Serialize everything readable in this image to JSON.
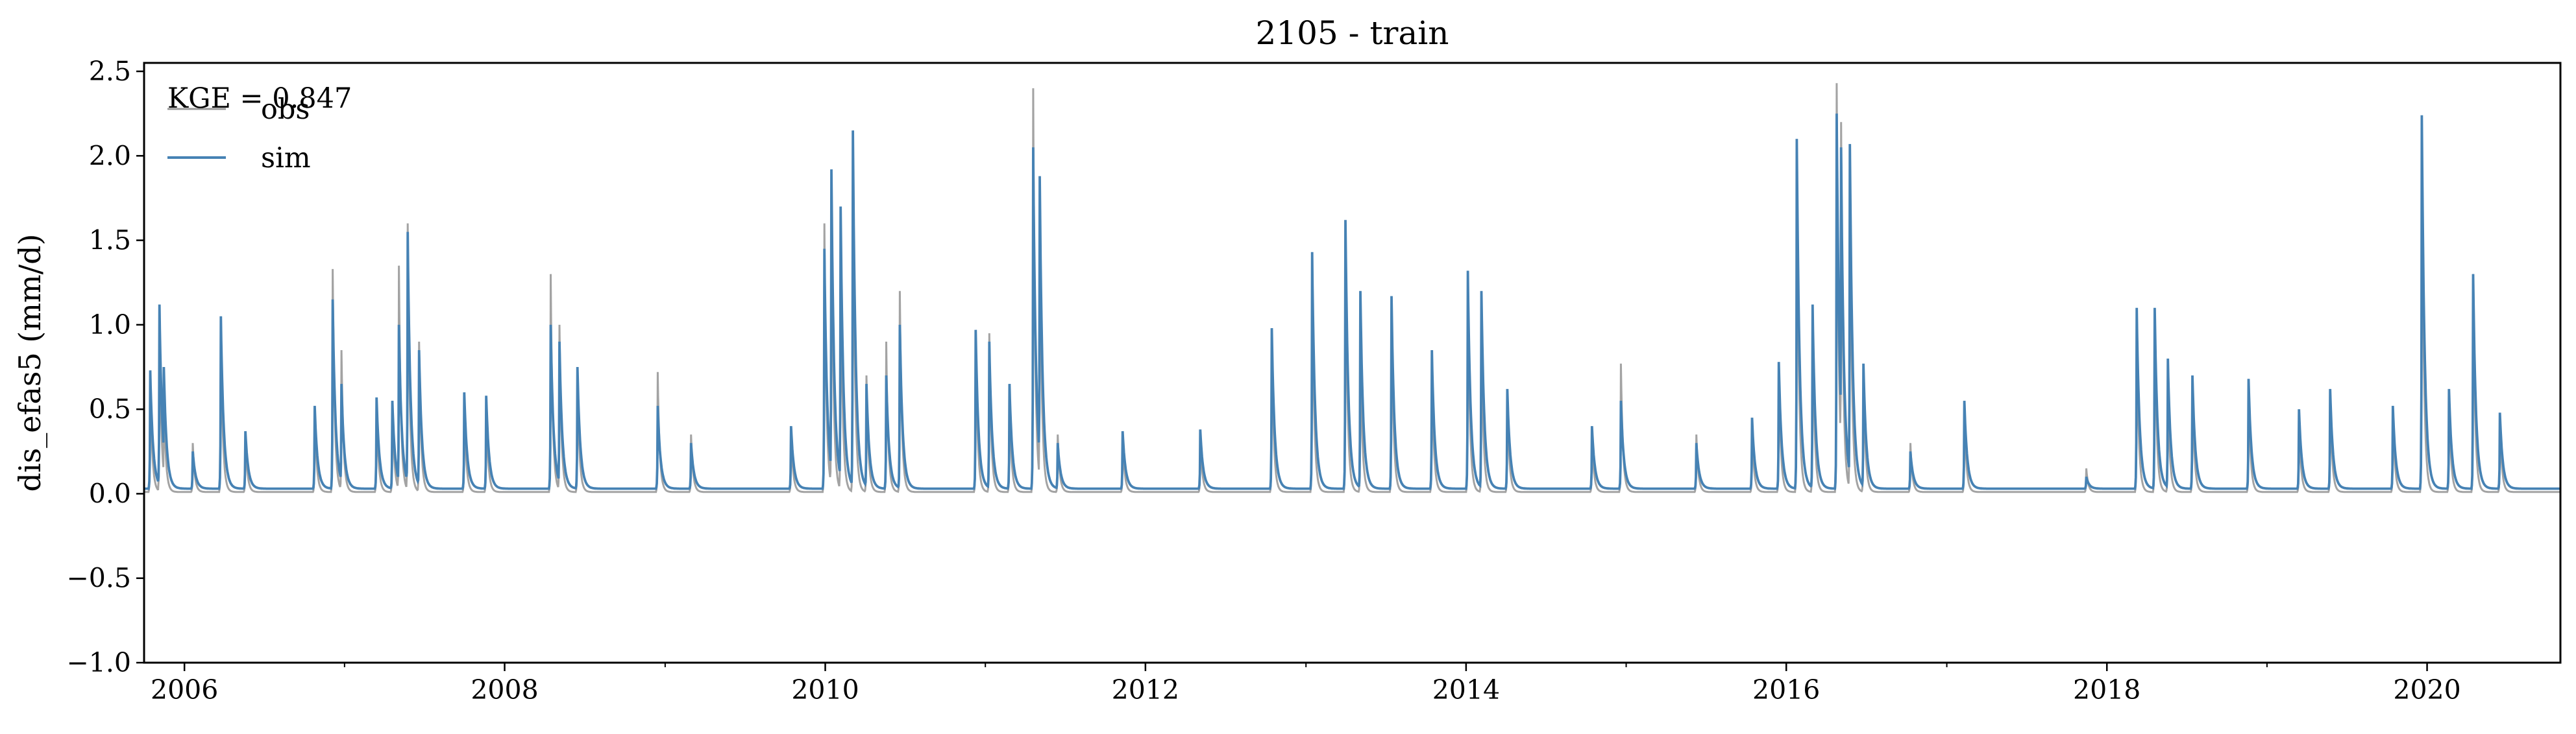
{
  "chart_data": {
    "type": "line",
    "title": "2105 - train",
    "xlabel": "",
    "ylabel": "dis_efas5 (mm/d)",
    "xlim": [
      "2005-10-01",
      "2020-10-31"
    ],
    "ylim": [
      -1.0,
      2.55
    ],
    "grid": false,
    "legend_position": "top-left",
    "annotation": "KGE = 0.847",
    "x_tick_labels": [
      "2006",
      "2008",
      "2010",
      "2012",
      "2014",
      "2016",
      "2018",
      "2020"
    ],
    "y_tick_labels": [
      "−1.0",
      "−0.5",
      "0.0",
      "0.5",
      "1.0",
      "1.5",
      "2.0",
      "2.5"
    ],
    "baseflow": {
      "obs": 0.01,
      "sim": 0.03
    },
    "series": [
      {
        "name": "obs",
        "color": "#999999",
        "peaks": [
          [
            "2005-10-15",
            0.7
          ],
          [
            "2005-11-05",
            1.05
          ],
          [
            "2005-11-15",
            0.6
          ],
          [
            "2006-01-20",
            0.3
          ],
          [
            "2006-03-25",
            1.0
          ],
          [
            "2006-05-20",
            0.35
          ],
          [
            "2006-10-25",
            0.5
          ],
          [
            "2006-12-05",
            1.33
          ],
          [
            "2006-12-25",
            0.85
          ],
          [
            "2007-03-15",
            0.55
          ],
          [
            "2007-04-20",
            0.55
          ],
          [
            "2007-05-05",
            1.35
          ],
          [
            "2007-05-25",
            1.6
          ],
          [
            "2007-06-20",
            0.9
          ],
          [
            "2007-10-01",
            0.55
          ],
          [
            "2007-11-20",
            0.55
          ],
          [
            "2008-04-15",
            1.3
          ],
          [
            "2008-05-05",
            1.0
          ],
          [
            "2008-06-15",
            0.72
          ],
          [
            "2008-12-15",
            0.72
          ],
          [
            "2009-03-01",
            0.35
          ],
          [
            "2009-10-15",
            0.38
          ],
          [
            "2009-12-30",
            1.6
          ],
          [
            "2010-01-15",
            1.9
          ],
          [
            "2010-02-05",
            1.5
          ],
          [
            "2010-03-05",
            2.1
          ],
          [
            "2010-04-05",
            0.7
          ],
          [
            "2010-05-20",
            0.9
          ],
          [
            "2010-06-20",
            1.2
          ],
          [
            "2010-12-10",
            0.95
          ],
          [
            "2011-01-10",
            0.95
          ],
          [
            "2011-02-25",
            0.6
          ],
          [
            "2011-04-20",
            2.4
          ],
          [
            "2011-05-05",
            1.8
          ],
          [
            "2011-06-15",
            0.35
          ],
          [
            "2011-11-10",
            0.35
          ],
          [
            "2012-05-05",
            0.35
          ],
          [
            "2012-10-15",
            0.95
          ],
          [
            "2013-01-15",
            1.4
          ],
          [
            "2013-04-01",
            1.6
          ],
          [
            "2013-05-05",
            0.9
          ],
          [
            "2013-07-15",
            1.15
          ],
          [
            "2013-10-15",
            0.8
          ],
          [
            "2014-01-05",
            1.3
          ],
          [
            "2014-02-05",
            1.0
          ],
          [
            "2014-04-05",
            0.6
          ],
          [
            "2014-10-15",
            0.35
          ],
          [
            "2014-12-20",
            0.77
          ],
          [
            "2015-06-10",
            0.35
          ],
          [
            "2015-10-15",
            0.4
          ],
          [
            "2015-12-15",
            0.77
          ],
          [
            "2016-01-25",
            2.1
          ],
          [
            "2016-03-01",
            1.1
          ],
          [
            "2016-04-25",
            2.43
          ],
          [
            "2016-05-05",
            2.2
          ],
          [
            "2016-05-25",
            2.05
          ],
          [
            "2016-06-25",
            0.75
          ],
          [
            "2016-10-10",
            0.3
          ],
          [
            "2017-02-10",
            0.52
          ],
          [
            "2017-11-15",
            0.15
          ],
          [
            "2018-03-10",
            1.0
          ],
          [
            "2018-04-20",
            1.08
          ],
          [
            "2018-05-20",
            0.65
          ],
          [
            "2018-07-15",
            0.65
          ],
          [
            "2018-11-20",
            0.65
          ],
          [
            "2019-03-15",
            0.45
          ],
          [
            "2019-05-25",
            0.6
          ],
          [
            "2019-10-15",
            0.5
          ],
          [
            "2019-12-20",
            2.22
          ],
          [
            "2020-02-20",
            0.6
          ],
          [
            "2020-04-15",
            1.3
          ],
          [
            "2020-06-15",
            0.45
          ]
        ]
      },
      {
        "name": "sim",
        "color": "#4682b4",
        "peaks": [
          [
            "2005-10-15",
            0.73
          ],
          [
            "2005-11-05",
            1.12
          ],
          [
            "2005-11-15",
            0.75
          ],
          [
            "2006-01-20",
            0.25
          ],
          [
            "2006-03-25",
            1.05
          ],
          [
            "2006-05-20",
            0.37
          ],
          [
            "2006-10-25",
            0.52
          ],
          [
            "2006-12-05",
            1.15
          ],
          [
            "2006-12-25",
            0.65
          ],
          [
            "2007-03-15",
            0.57
          ],
          [
            "2007-04-20",
            0.55
          ],
          [
            "2007-05-05",
            1.0
          ],
          [
            "2007-05-25",
            1.55
          ],
          [
            "2007-06-20",
            0.85
          ],
          [
            "2007-10-01",
            0.6
          ],
          [
            "2007-11-20",
            0.58
          ],
          [
            "2008-04-15",
            1.0
          ],
          [
            "2008-05-05",
            0.9
          ],
          [
            "2008-06-15",
            0.75
          ],
          [
            "2008-12-15",
            0.52
          ],
          [
            "2009-03-01",
            0.3
          ],
          [
            "2009-10-15",
            0.4
          ],
          [
            "2009-12-30",
            1.45
          ],
          [
            "2010-01-15",
            1.92
          ],
          [
            "2010-02-05",
            1.7
          ],
          [
            "2010-03-05",
            2.15
          ],
          [
            "2010-04-05",
            0.65
          ],
          [
            "2010-05-20",
            0.7
          ],
          [
            "2010-06-20",
            1.0
          ],
          [
            "2010-12-10",
            0.97
          ],
          [
            "2011-01-10",
            0.9
          ],
          [
            "2011-02-25",
            0.65
          ],
          [
            "2011-04-20",
            2.05
          ],
          [
            "2011-05-05",
            1.88
          ],
          [
            "2011-06-15",
            0.3
          ],
          [
            "2011-11-10",
            0.37
          ],
          [
            "2012-05-05",
            0.38
          ],
          [
            "2012-10-15",
            0.98
          ],
          [
            "2013-01-15",
            1.43
          ],
          [
            "2013-04-01",
            1.62
          ],
          [
            "2013-05-05",
            1.2
          ],
          [
            "2013-07-15",
            1.17
          ],
          [
            "2013-10-15",
            0.85
          ],
          [
            "2014-01-05",
            1.32
          ],
          [
            "2014-02-05",
            1.2
          ],
          [
            "2014-04-05",
            0.62
          ],
          [
            "2014-10-15",
            0.4
          ],
          [
            "2014-12-20",
            0.55
          ],
          [
            "2015-06-10",
            0.3
          ],
          [
            "2015-10-15",
            0.45
          ],
          [
            "2015-12-15",
            0.78
          ],
          [
            "2016-01-25",
            2.1
          ],
          [
            "2016-03-01",
            1.12
          ],
          [
            "2016-04-25",
            2.25
          ],
          [
            "2016-05-05",
            2.05
          ],
          [
            "2016-05-25",
            2.07
          ],
          [
            "2016-06-25",
            0.77
          ],
          [
            "2016-10-10",
            0.25
          ],
          [
            "2017-02-10",
            0.55
          ],
          [
            "2017-11-15",
            0.1
          ],
          [
            "2018-03-10",
            1.1
          ],
          [
            "2018-04-20",
            1.1
          ],
          [
            "2018-05-20",
            0.8
          ],
          [
            "2018-07-15",
            0.7
          ],
          [
            "2018-11-20",
            0.68
          ],
          [
            "2019-03-15",
            0.5
          ],
          [
            "2019-05-25",
            0.62
          ],
          [
            "2019-10-15",
            0.52
          ],
          [
            "2019-12-20",
            2.24
          ],
          [
            "2020-02-20",
            0.62
          ],
          [
            "2020-04-15",
            1.3
          ],
          [
            "2020-06-15",
            0.48
          ]
        ]
      }
    ]
  }
}
